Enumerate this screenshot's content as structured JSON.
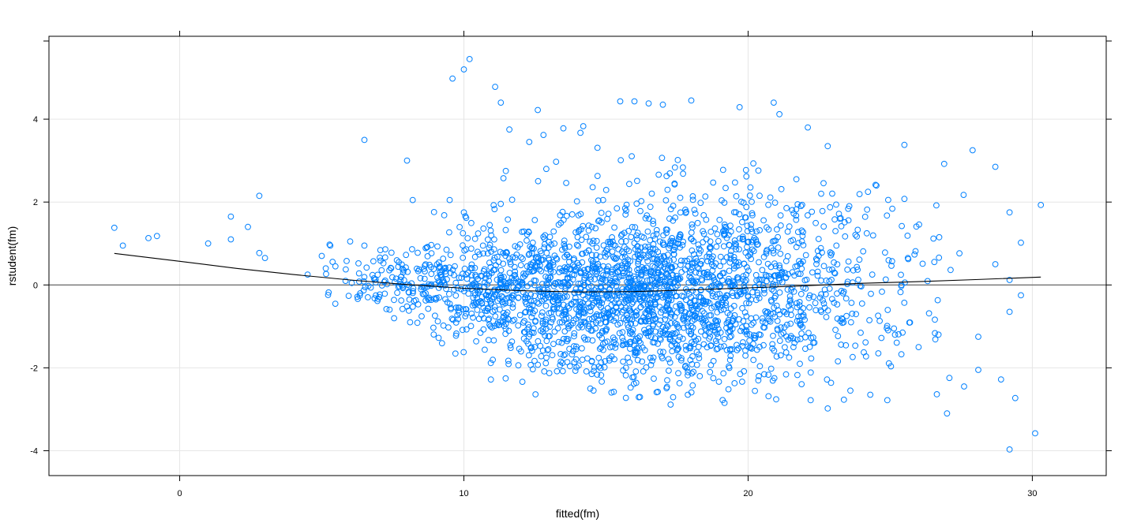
{
  "chart_data": {
    "type": "scatter",
    "title": "",
    "xlabel": "fitted(fm)",
    "ylabel": "rstudent(fm)",
    "xlim": [
      -4.6,
      32.6
    ],
    "ylim": [
      -4.6,
      6.0
    ],
    "xticks": [
      0,
      10,
      20,
      30
    ],
    "yticks": [
      -4,
      -2,
      0,
      2,
      4
    ],
    "xtick_labels": [
      "0",
      "10",
      "20",
      "30"
    ],
    "ytick_labels": [
      "-4",
      "-2",
      "0",
      "2",
      "4"
    ],
    "grid": true,
    "reference_line_y": 0,
    "colors": {
      "points": "#0080ff",
      "smooth": "#000000",
      "grid": "#e6e6e6",
      "frame": "#000000"
    },
    "series": [
      {
        "kind": "points",
        "points": [
          [
            -2.3,
            1.38
          ],
          [
            -2.0,
            0.95
          ],
          [
            -1.1,
            1.13
          ],
          [
            -0.8,
            1.18
          ],
          [
            1.0,
            1.0
          ],
          [
            1.8,
            1.65
          ],
          [
            1.8,
            1.1
          ],
          [
            2.4,
            1.4
          ],
          [
            2.8,
            2.15
          ],
          [
            2.8,
            0.77
          ],
          [
            3.0,
            0.65
          ],
          [
            4.5,
            0.25
          ],
          [
            5.0,
            0.7
          ],
          [
            5.3,
            0.95
          ],
          [
            6.0,
            1.05
          ],
          [
            6.5,
            3.5
          ],
          [
            6.5,
            0.95
          ],
          [
            8.0,
            3.0
          ],
          [
            8.2,
            2.05
          ],
          [
            9.5,
            2.05
          ],
          [
            9.6,
            4.98
          ],
          [
            10.0,
            5.2
          ],
          [
            10.2,
            5.45
          ],
          [
            10.0,
            1.75
          ],
          [
            11.1,
            4.78
          ],
          [
            11.3,
            4.4
          ],
          [
            11.6,
            3.75
          ],
          [
            12.3,
            3.45
          ],
          [
            12.6,
            4.22
          ],
          [
            12.8,
            3.62
          ],
          [
            12.9,
            2.8
          ],
          [
            13.5,
            3.78
          ],
          [
            14.1,
            3.67
          ],
          [
            14.2,
            3.83
          ],
          [
            14.7,
            3.31
          ],
          [
            15.5,
            4.43
          ],
          [
            16.0,
            4.43
          ],
          [
            16.5,
            4.38
          ],
          [
            17.0,
            4.35
          ],
          [
            18.0,
            4.45
          ],
          [
            19.7,
            4.29
          ],
          [
            20.9,
            4.4
          ],
          [
            21.1,
            4.12
          ],
          [
            22.1,
            3.8
          ],
          [
            22.8,
            3.35
          ],
          [
            25.5,
            3.38
          ],
          [
            26.9,
            2.92
          ],
          [
            27.9,
            3.25
          ],
          [
            28.7,
            2.85
          ],
          [
            29.2,
            1.75
          ],
          [
            30.3,
            1.93
          ],
          [
            29.6,
            1.02
          ],
          [
            28.7,
            0.5
          ],
          [
            29.2,
            0.12
          ],
          [
            29.6,
            -0.25
          ],
          [
            29.2,
            -0.65
          ],
          [
            28.1,
            -1.25
          ],
          [
            28.1,
            -2.05
          ],
          [
            27.6,
            -2.45
          ],
          [
            27.0,
            -3.1
          ],
          [
            28.9,
            -2.28
          ],
          [
            29.4,
            -2.73
          ],
          [
            30.1,
            -3.58
          ],
          [
            29.2,
            -3.97
          ],
          [
            22.8,
            -2.98
          ],
          [
            22.2,
            -2.78
          ],
          [
            23.6,
            -2.55
          ],
          [
            24.3,
            -2.65
          ],
          [
            24.9,
            -2.78
          ],
          [
            26.7,
            -1.2
          ],
          [
            26.0,
            -1.5
          ],
          [
            18.3,
            -2.2
          ],
          [
            17.8,
            -1.95
          ],
          [
            15.6,
            -1.85
          ],
          [
            14.5,
            -1.85
          ]
        ],
        "generated_cloud": {
          "count": 2600,
          "seed": 20240517,
          "x_mean": 16.0,
          "x_sd": 4.4,
          "x_min": 5.0,
          "x_max": 28.0,
          "y_center_at_x": [
            [
              5,
              0.15
            ],
            [
              8,
              0.05
            ],
            [
              10,
              -0.1
            ],
            [
              13,
              -0.2
            ],
            [
              16,
              -0.2
            ],
            [
              19,
              -0.1
            ],
            [
              22,
              0.0
            ],
            [
              26,
              0.2
            ]
          ],
          "y_sd_at_x": [
            [
              5,
              0.3
            ],
            [
              8,
              0.45
            ],
            [
              11,
              0.8
            ],
            [
              15,
              1.05
            ],
            [
              20,
              1.15
            ],
            [
              24,
              1.2
            ],
            [
              28,
              1.3
            ]
          ]
        }
      },
      {
        "kind": "smooth",
        "name": "",
        "points": [
          [
            -2.3,
            0.76
          ],
          [
            0.0,
            0.57
          ],
          [
            2.0,
            0.4
          ],
          [
            4.0,
            0.25
          ],
          [
            6.0,
            0.12
          ],
          [
            8.0,
            0.01
          ],
          [
            10.0,
            -0.08
          ],
          [
            12.0,
            -0.14
          ],
          [
            14.0,
            -0.17
          ],
          [
            16.0,
            -0.16
          ],
          [
            18.0,
            -0.12
          ],
          [
            20.0,
            -0.07
          ],
          [
            22.0,
            -0.02
          ],
          [
            24.0,
            0.04
          ],
          [
            26.0,
            0.08
          ],
          [
            28.0,
            0.13
          ],
          [
            30.3,
            0.19
          ]
        ]
      }
    ]
  }
}
